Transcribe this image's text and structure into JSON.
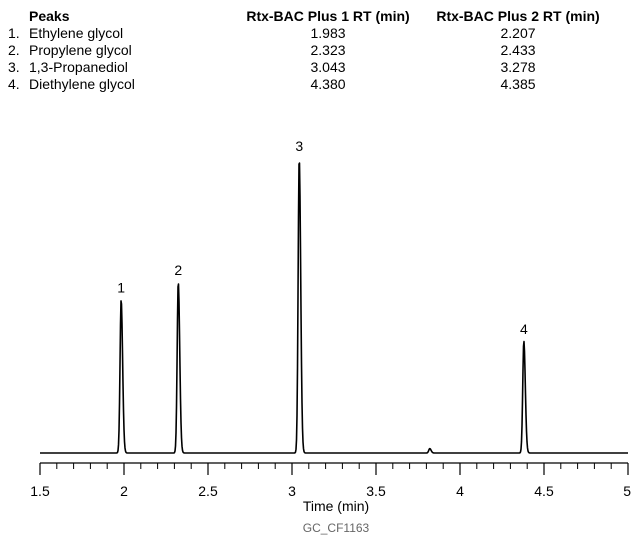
{
  "table": {
    "headers": [
      "Peaks",
      "Rtx-BAC Plus 1 RT (min)",
      "Rtx-BAC Plus 2 RT (min)"
    ],
    "rows": [
      {
        "num": "1.",
        "name": "Ethylene glycol",
        "rt1": "1.983",
        "rt2": "2.207"
      },
      {
        "num": "2.",
        "name": "Propylene glycol",
        "rt1": "2.323",
        "rt2": "2.433"
      },
      {
        "num": "3.",
        "name": "1,3-Propanediol",
        "rt1": "3.043",
        "rt2": "3.278"
      },
      {
        "num": "4.",
        "name": "Diethylene glycol",
        "rt1": "4.380",
        "rt2": "4.385"
      }
    ]
  },
  "chart_data": {
    "type": "line",
    "title": "",
    "xlabel": "Time (min)",
    "ylabel": "",
    "xlim": [
      1.5,
      5
    ],
    "ylim": [
      0,
      100
    ],
    "grid": false,
    "x_ticks": [
      "1.5",
      "2",
      "2.5",
      "3",
      "3.5",
      "4",
      "4.5",
      "5"
    ],
    "x_tick_values": [
      1.5,
      2,
      2.5,
      3,
      3.5,
      4,
      4.5,
      5
    ],
    "minor_tick_step": 0.1,
    "baseline": 0,
    "line_color": "#000000",
    "peaks": [
      {
        "label": "1",
        "rt": 1.983,
        "height": 52
      },
      {
        "label": "2",
        "rt": 2.323,
        "height": 58
      },
      {
        "label": "3",
        "rt": 3.043,
        "height": 100
      },
      {
        "label": "4",
        "rt": 4.38,
        "height": 38
      },
      {
        "label": "",
        "rt": 3.82,
        "height": 1.5
      }
    ],
    "footer": "GC_CF1163"
  }
}
